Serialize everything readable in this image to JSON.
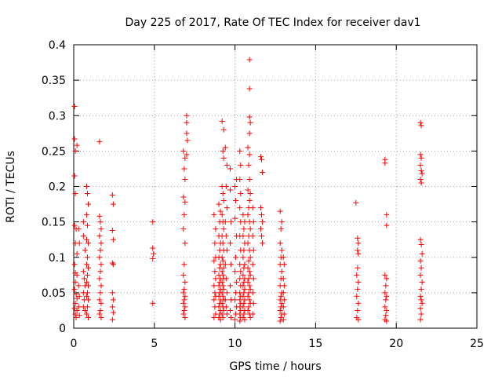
{
  "chart_data": {
    "type": "scatter",
    "title": "Day 225 of 2017, Rate Of TEC Index for receiver dav1",
    "xlabel": "GPS time / hours",
    "ylabel": "ROTI / TECUs",
    "xlim": [
      0,
      25
    ],
    "ylim": [
      0,
      0.4
    ],
    "x_ticks": [
      "0",
      "5",
      "10",
      "15",
      "20",
      "25"
    ],
    "y_ticks": [
      "0",
      "0.05",
      "0.1",
      "0.15",
      "0.2",
      "0.25",
      "0.3",
      "0.35",
      "0.4"
    ],
    "x_tick_values": [
      0,
      5,
      10,
      15,
      20,
      25
    ],
    "y_tick_values": [
      0,
      0.05,
      0.1,
      0.15,
      0.2,
      0.25,
      0.3,
      0.35,
      0.4
    ],
    "grid": true,
    "marker": "+",
    "marker_color": "#ff0000",
    "points": [
      [
        0.05,
        0.313
      ],
      [
        0.05,
        0.267
      ],
      [
        0.1,
        0.25
      ],
      [
        0.2,
        0.258
      ],
      [
        0.05,
        0.215
      ],
      [
        0.1,
        0.19
      ],
      [
        0.05,
        0.145
      ],
      [
        0.15,
        0.14
      ],
      [
        0.1,
        0.12
      ],
      [
        0.2,
        0.105
      ],
      [
        0.05,
        0.09
      ],
      [
        0.1,
        0.078
      ],
      [
        0.2,
        0.075
      ],
      [
        0.1,
        0.065
      ],
      [
        0.05,
        0.055
      ],
      [
        0.15,
        0.048
      ],
      [
        0.2,
        0.042
      ],
      [
        0.1,
        0.035
      ],
      [
        0.05,
        0.028
      ],
      [
        0.2,
        0.025
      ],
      [
        0.1,
        0.02
      ],
      [
        0.15,
        0.015
      ],
      [
        0.3,
        0.14
      ],
      [
        0.35,
        0.12
      ],
      [
        0.3,
        0.06
      ],
      [
        0.35,
        0.045
      ],
      [
        0.3,
        0.03
      ],
      [
        0.35,
        0.018
      ],
      [
        0.6,
        0.15
      ],
      [
        0.6,
        0.13
      ],
      [
        0.7,
        0.11
      ],
      [
        0.6,
        0.08
      ],
      [
        0.65,
        0.07
      ],
      [
        0.7,
        0.06
      ],
      [
        0.6,
        0.05
      ],
      [
        0.65,
        0.04
      ],
      [
        0.6,
        0.03
      ],
      [
        0.7,
        0.025
      ],
      [
        0.8,
        0.2
      ],
      [
        0.85,
        0.19
      ],
      [
        0.9,
        0.175
      ],
      [
        0.8,
        0.16
      ],
      [
        0.85,
        0.145
      ],
      [
        0.8,
        0.125
      ],
      [
        0.9,
        0.12
      ],
      [
        0.85,
        0.1
      ],
      [
        0.8,
        0.09
      ],
      [
        0.9,
        0.085
      ],
      [
        0.85,
        0.075
      ],
      [
        0.8,
        0.065
      ],
      [
        0.9,
        0.06
      ],
      [
        0.85,
        0.05
      ],
      [
        0.8,
        0.045
      ],
      [
        0.9,
        0.04
      ],
      [
        0.85,
        0.03
      ],
      [
        0.8,
        0.02
      ],
      [
        0.9,
        0.015
      ],
      [
        1.6,
        0.263
      ],
      [
        1.6,
        0.158
      ],
      [
        1.65,
        0.15
      ],
      [
        1.7,
        0.14
      ],
      [
        1.6,
        0.13
      ],
      [
        1.7,
        0.12
      ],
      [
        1.65,
        0.11
      ],
      [
        1.6,
        0.1
      ],
      [
        1.7,
        0.09
      ],
      [
        1.65,
        0.08
      ],
      [
        1.6,
        0.07
      ],
      [
        1.7,
        0.06
      ],
      [
        1.65,
        0.05
      ],
      [
        1.6,
        0.04
      ],
      [
        1.7,
        0.035
      ],
      [
        1.65,
        0.025
      ],
      [
        1.6,
        0.02
      ],
      [
        1.7,
        0.015
      ],
      [
        2.4,
        0.188
      ],
      [
        2.45,
        0.175
      ],
      [
        2.4,
        0.138
      ],
      [
        2.45,
        0.125
      ],
      [
        2.4,
        0.092
      ],
      [
        2.45,
        0.09
      ],
      [
        2.4,
        0.05
      ],
      [
        2.45,
        0.04
      ],
      [
        2.4,
        0.03
      ],
      [
        2.45,
        0.022
      ],
      [
        2.4,
        0.012
      ],
      [
        4.9,
        0.15
      ],
      [
        4.9,
        0.113
      ],
      [
        4.95,
        0.105
      ],
      [
        4.9,
        0.098
      ],
      [
        4.9,
        0.035
      ],
      [
        6.8,
        0.25
      ],
      [
        6.9,
        0.24
      ],
      [
        6.85,
        0.225
      ],
      [
        6.9,
        0.21
      ],
      [
        6.8,
        0.185
      ],
      [
        6.9,
        0.178
      ],
      [
        6.85,
        0.16
      ],
      [
        6.8,
        0.14
      ],
      [
        6.9,
        0.12
      ],
      [
        6.85,
        0.09
      ],
      [
        6.8,
        0.075
      ],
      [
        6.9,
        0.065
      ],
      [
        6.85,
        0.055
      ],
      [
        6.8,
        0.05
      ],
      [
        6.9,
        0.045
      ],
      [
        6.85,
        0.04
      ],
      [
        6.8,
        0.035
      ],
      [
        6.9,
        0.03
      ],
      [
        6.85,
        0.025
      ],
      [
        6.8,
        0.02
      ],
      [
        6.9,
        0.015
      ],
      [
        7.0,
        0.3
      ],
      [
        7.0,
        0.29
      ],
      [
        7.0,
        0.275
      ],
      [
        7.05,
        0.265
      ],
      [
        7.0,
        0.245
      ],
      [
        8.7,
        0.16
      ],
      [
        8.8,
        0.14
      ],
      [
        8.75,
        0.12
      ],
      [
        8.8,
        0.1
      ],
      [
        8.7,
        0.095
      ],
      [
        8.75,
        0.08
      ],
      [
        8.8,
        0.07
      ],
      [
        8.7,
        0.06
      ],
      [
        8.75,
        0.05
      ],
      [
        8.8,
        0.045
      ],
      [
        8.7,
        0.04
      ],
      [
        8.75,
        0.03
      ],
      [
        8.8,
        0.02
      ],
      [
        8.7,
        0.015
      ],
      [
        9.0,
        0.175
      ],
      [
        9.1,
        0.165
      ],
      [
        9.05,
        0.15
      ],
      [
        9.0,
        0.13
      ],
      [
        9.1,
        0.12
      ],
      [
        9.05,
        0.11
      ],
      [
        9.0,
        0.1
      ],
      [
        9.1,
        0.09
      ],
      [
        9.05,
        0.085
      ],
      [
        9.0,
        0.075
      ],
      [
        9.1,
        0.07
      ],
      [
        9.05,
        0.065
      ],
      [
        9.0,
        0.06
      ],
      [
        9.1,
        0.055
      ],
      [
        9.05,
        0.05
      ],
      [
        9.0,
        0.045
      ],
      [
        9.1,
        0.04
      ],
      [
        9.05,
        0.035
      ],
      [
        9.0,
        0.03
      ],
      [
        9.1,
        0.025
      ],
      [
        9.05,
        0.02
      ],
      [
        9.0,
        0.015
      ],
      [
        9.1,
        0.012
      ],
      [
        9.2,
        0.292
      ],
      [
        9.3,
        0.28
      ],
      [
        9.25,
        0.25
      ],
      [
        9.3,
        0.24
      ],
      [
        9.2,
        0.2
      ],
      [
        9.25,
        0.19
      ],
      [
        9.3,
        0.18
      ],
      [
        9.2,
        0.16
      ],
      [
        9.25,
        0.15
      ],
      [
        9.3,
        0.14
      ],
      [
        9.2,
        0.13
      ],
      [
        9.25,
        0.12
      ],
      [
        9.3,
        0.11
      ],
      [
        9.2,
        0.1
      ],
      [
        9.25,
        0.095
      ],
      [
        9.3,
        0.085
      ],
      [
        9.2,
        0.08
      ],
      [
        9.25,
        0.075
      ],
      [
        9.3,
        0.07
      ],
      [
        9.2,
        0.065
      ],
      [
        9.25,
        0.06
      ],
      [
        9.3,
        0.055
      ],
      [
        9.2,
        0.05
      ],
      [
        9.25,
        0.045
      ],
      [
        9.3,
        0.04
      ],
      [
        9.2,
        0.035
      ],
      [
        9.25,
        0.03
      ],
      [
        9.3,
        0.025
      ],
      [
        9.2,
        0.02
      ],
      [
        9.25,
        0.015
      ],
      [
        9.4,
        0.255
      ],
      [
        9.5,
        0.23
      ],
      [
        9.45,
        0.2
      ],
      [
        9.5,
        0.17
      ],
      [
        9.4,
        0.15
      ],
      [
        9.45,
        0.13
      ],
      [
        9.5,
        0.11
      ],
      [
        9.4,
        0.09
      ],
      [
        9.45,
        0.07
      ],
      [
        9.5,
        0.05
      ],
      [
        9.4,
        0.04
      ],
      [
        9.45,
        0.03
      ],
      [
        9.5,
        0.02
      ],
      [
        9.7,
        0.225
      ],
      [
        9.7,
        0.195
      ],
      [
        9.75,
        0.15
      ],
      [
        9.7,
        0.12
      ],
      [
        9.75,
        0.09
      ],
      [
        9.7,
        0.06
      ],
      [
        9.75,
        0.04
      ],
      [
        9.7,
        0.025
      ],
      [
        9.75,
        0.015
      ],
      [
        10.0,
        0.2
      ],
      [
        10.1,
        0.21
      ],
      [
        10.05,
        0.18
      ],
      [
        10.0,
        0.155
      ],
      [
        10.1,
        0.13
      ],
      [
        10.05,
        0.1
      ],
      [
        10.0,
        0.08
      ],
      [
        10.1,
        0.065
      ],
      [
        10.05,
        0.05
      ],
      [
        10.0,
        0.04
      ],
      [
        10.1,
        0.03
      ],
      [
        10.05,
        0.02
      ],
      [
        10.0,
        0.012
      ],
      [
        10.3,
        0.25
      ],
      [
        10.35,
        0.23
      ],
      [
        10.3,
        0.21
      ],
      [
        10.35,
        0.19
      ],
      [
        10.3,
        0.17
      ],
      [
        10.35,
        0.15
      ],
      [
        10.3,
        0.13
      ],
      [
        10.35,
        0.11
      ],
      [
        10.3,
        0.09
      ],
      [
        10.35,
        0.08
      ],
      [
        10.3,
        0.07
      ],
      [
        10.35,
        0.06
      ],
      [
        10.3,
        0.05
      ],
      [
        10.35,
        0.045
      ],
      [
        10.3,
        0.04
      ],
      [
        10.35,
        0.035
      ],
      [
        10.3,
        0.03
      ],
      [
        10.35,
        0.025
      ],
      [
        10.3,
        0.02
      ],
      [
        10.35,
        0.015
      ],
      [
        10.3,
        0.01
      ],
      [
        10.5,
        0.16
      ],
      [
        10.6,
        0.15
      ],
      [
        10.55,
        0.14
      ],
      [
        10.5,
        0.13
      ],
      [
        10.6,
        0.12
      ],
      [
        10.55,
        0.11
      ],
      [
        10.5,
        0.1
      ],
      [
        10.6,
        0.09
      ],
      [
        10.55,
        0.085
      ],
      [
        10.5,
        0.075
      ],
      [
        10.6,
        0.07
      ],
      [
        10.55,
        0.065
      ],
      [
        10.5,
        0.06
      ],
      [
        10.6,
        0.055
      ],
      [
        10.55,
        0.05
      ],
      [
        10.5,
        0.045
      ],
      [
        10.6,
        0.04
      ],
      [
        10.55,
        0.035
      ],
      [
        10.5,
        0.03
      ],
      [
        10.6,
        0.025
      ],
      [
        10.55,
        0.02
      ],
      [
        10.5,
        0.015
      ],
      [
        10.6,
        0.012
      ],
      [
        10.9,
        0.379
      ],
      [
        10.9,
        0.338
      ],
      [
        10.9,
        0.298
      ],
      [
        10.95,
        0.29
      ],
      [
        10.9,
        0.275
      ],
      [
        10.8,
        0.255
      ],
      [
        10.9,
        0.245
      ],
      [
        10.85,
        0.23
      ],
      [
        10.9,
        0.21
      ],
      [
        10.8,
        0.195
      ],
      [
        10.95,
        0.19
      ],
      [
        10.9,
        0.18
      ],
      [
        10.85,
        0.17
      ],
      [
        10.8,
        0.16
      ],
      [
        10.9,
        0.15
      ],
      [
        10.95,
        0.14
      ],
      [
        10.85,
        0.13
      ],
      [
        10.8,
        0.12
      ],
      [
        10.9,
        0.11
      ],
      [
        10.95,
        0.1
      ],
      [
        10.85,
        0.095
      ],
      [
        10.8,
        0.085
      ],
      [
        10.9,
        0.08
      ],
      [
        10.95,
        0.075
      ],
      [
        10.85,
        0.07
      ],
      [
        10.8,
        0.065
      ],
      [
        10.9,
        0.06
      ],
      [
        10.95,
        0.055
      ],
      [
        10.85,
        0.05
      ],
      [
        10.8,
        0.045
      ],
      [
        10.9,
        0.04
      ],
      [
        10.95,
        0.035
      ],
      [
        10.85,
        0.03
      ],
      [
        10.8,
        0.025
      ],
      [
        10.9,
        0.02
      ],
      [
        10.95,
        0.015
      ],
      [
        11.1,
        0.17
      ],
      [
        11.15,
        0.15
      ],
      [
        11.1,
        0.13
      ],
      [
        11.15,
        0.11
      ],
      [
        11.1,
        0.09
      ],
      [
        11.15,
        0.07
      ],
      [
        11.1,
        0.05
      ],
      [
        11.15,
        0.035
      ],
      [
        11.1,
        0.02
      ],
      [
        11.6,
        0.242
      ],
      [
        11.65,
        0.238
      ],
      [
        11.7,
        0.22
      ],
      [
        11.6,
        0.17
      ],
      [
        11.65,
        0.16
      ],
      [
        11.7,
        0.15
      ],
      [
        11.6,
        0.14
      ],
      [
        11.65,
        0.13
      ],
      [
        11.7,
        0.12
      ],
      [
        12.8,
        0.165
      ],
      [
        12.9,
        0.15
      ],
      [
        12.85,
        0.14
      ],
      [
        12.8,
        0.12
      ],
      [
        12.9,
        0.11
      ],
      [
        12.85,
        0.1
      ],
      [
        12.8,
        0.09
      ],
      [
        12.9,
        0.08
      ],
      [
        12.85,
        0.07
      ],
      [
        12.8,
        0.06
      ],
      [
        12.9,
        0.05
      ],
      [
        12.85,
        0.045
      ],
      [
        12.8,
        0.04
      ],
      [
        12.9,
        0.035
      ],
      [
        12.85,
        0.03
      ],
      [
        12.8,
        0.025
      ],
      [
        12.9,
        0.02
      ],
      [
        12.85,
        0.015
      ],
      [
        12.8,
        0.01
      ],
      [
        13.0,
        0.1
      ],
      [
        13.05,
        0.09
      ],
      [
        13.0,
        0.07
      ],
      [
        13.05,
        0.06
      ],
      [
        13.0,
        0.05
      ],
      [
        13.05,
        0.04
      ],
      [
        13.0,
        0.03
      ],
      [
        13.05,
        0.02
      ],
      [
        13.0,
        0.012
      ],
      [
        17.5,
        0.177
      ],
      [
        17.6,
        0.127
      ],
      [
        17.65,
        0.12
      ],
      [
        17.6,
        0.11
      ],
      [
        17.65,
        0.105
      ],
      [
        17.6,
        0.085
      ],
      [
        17.55,
        0.075
      ],
      [
        17.65,
        0.065
      ],
      [
        17.6,
        0.055
      ],
      [
        17.55,
        0.045
      ],
      [
        17.65,
        0.035
      ],
      [
        17.6,
        0.025
      ],
      [
        17.55,
        0.015
      ],
      [
        17.65,
        0.012
      ],
      [
        19.3,
        0.238
      ],
      [
        19.3,
        0.233
      ],
      [
        19.4,
        0.16
      ],
      [
        19.4,
        0.145
      ],
      [
        19.3,
        0.075
      ],
      [
        19.4,
        0.07
      ],
      [
        19.35,
        0.06
      ],
      [
        19.3,
        0.05
      ],
      [
        19.4,
        0.045
      ],
      [
        19.35,
        0.04
      ],
      [
        19.3,
        0.03
      ],
      [
        19.4,
        0.025
      ],
      [
        19.35,
        0.018
      ],
      [
        19.3,
        0.012
      ],
      [
        19.4,
        0.01
      ],
      [
        21.5,
        0.29
      ],
      [
        21.55,
        0.286
      ],
      [
        21.5,
        0.245
      ],
      [
        21.55,
        0.24
      ],
      [
        21.5,
        0.23
      ],
      [
        21.55,
        0.222
      ],
      [
        21.6,
        0.218
      ],
      [
        21.5,
        0.21
      ],
      [
        21.55,
        0.205
      ],
      [
        21.5,
        0.125
      ],
      [
        21.55,
        0.118
      ],
      [
        21.6,
        0.105
      ],
      [
        21.5,
        0.095
      ],
      [
        21.55,
        0.085
      ],
      [
        21.5,
        0.075
      ],
      [
        21.6,
        0.065
      ],
      [
        21.55,
        0.055
      ],
      [
        21.5,
        0.045
      ],
      [
        21.55,
        0.04
      ],
      [
        21.6,
        0.035
      ],
      [
        21.5,
        0.028
      ],
      [
        21.55,
        0.02
      ],
      [
        21.5,
        0.012
      ]
    ]
  }
}
